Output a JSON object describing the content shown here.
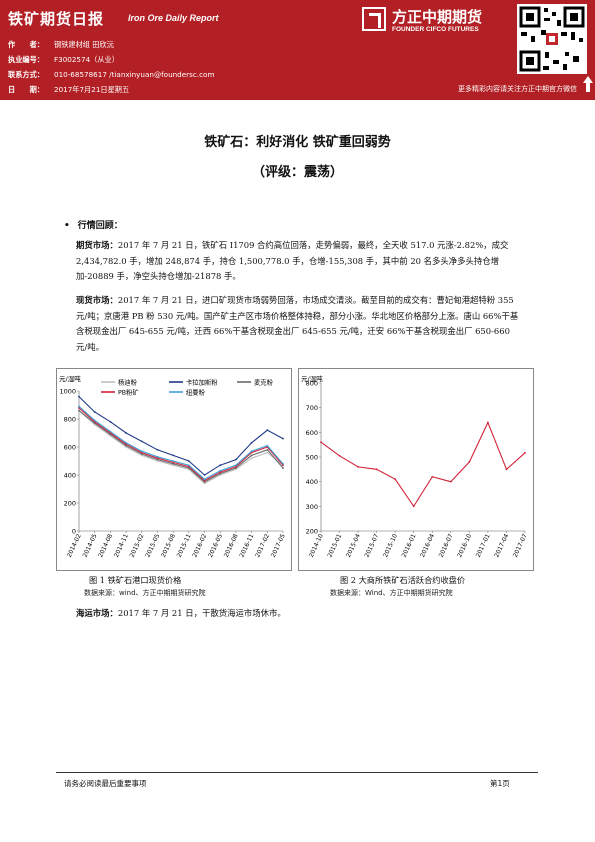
{
  "header": {
    "title": "铁矿期货日报",
    "subtitle": "Iron Ore Daily Report",
    "logo_cn": "方正中期期货",
    "logo_en": "FOUNDER CIFCO FUTURES",
    "meta": [
      {
        "label": "作　　者：",
        "value": "钢铁建材组 田欣沅"
      },
      {
        "label": "执业编号：",
        "value": "F3002574（从业）"
      },
      {
        "label": "联系方式：",
        "value": "010-68578617 /tianxinyuan@foundersc.com"
      },
      {
        "label": "日　　期：",
        "value": "2017年7月21日星期五"
      }
    ],
    "wechat_link": "更多精彩内容请关注方正中期官方微信"
  },
  "title": "铁矿石：利好消化 铁矿重回弱势",
  "rating": "（评级：震荡）",
  "section": "行情回顾：",
  "paragraphs": [
    {
      "lead": "期货市场：",
      "text": "2017 年 7 月 21 日，铁矿石 I1709 合约高位回落，走势偏弱，最终，全天收 517.0 元涨-2.82%，成交 2,434,782.0 手，增加 248,874 手，持仓 1,500,778.0 手，仓增-155,308 手，其中前 20 名多头净多头持仓增加-20889 手，净空头持仓增加-21878 手。"
    },
    {
      "lead": "现货市场：",
      "text": "2017 年 7 月 21 日，进口矿现货市场弱势回落，市场成交清淡。截至目前的成交有：曹妃甸港超特粉 355 元/吨；京唐港 PB 粉 530 元/吨。国产矿主产区市场价格整体持稳，部分小涨。华北地区价格部分上涨。唐山 66%干基含税现金出厂 645-655 元/吨，迁西 66%干基含税现金出厂 645-655 元/吨，迁安 66%干基含税现金出厂 650-660 元/吨。"
    },
    {
      "lead": "海运市场：",
      "text": "2017 年 7 月 21 日，干散货海运市场休市。"
    }
  ],
  "figure1": {
    "caption": "图 1 铁矿石港口现货价格",
    "source": "数据来源：wind、方正中期期货研究院"
  },
  "figure2": {
    "caption": "图 2 大商所铁矿石活跃合约收盘价",
    "source": "数据来源：Wind、方正中期期货研究院"
  },
  "chart_data": [
    {
      "type": "line",
      "ylabel": "元/湿吨",
      "ylim": [
        0,
        1000
      ],
      "yticks": [
        0,
        200,
        400,
        600,
        800,
        1000
      ],
      "x": [
        "2014-02",
        "2014-05",
        "2014-08",
        "2014-11",
        "2015-02",
        "2015-05",
        "2015-08",
        "2015-11",
        "2016-02",
        "2016-05",
        "2016-08",
        "2016-11",
        "2017-02",
        "2017-05"
      ],
      "legend_placement": "top",
      "series": [
        {
          "name": "杨迪粉",
          "color": "#c0c0c0",
          "values": [
            860,
            760,
            680,
            600,
            540,
            500,
            470,
            440,
            340,
            400,
            440,
            520,
            560,
            470
          ]
        },
        {
          "name": "卡拉加斯粉",
          "color": "#1f3a8a",
          "values": [
            960,
            850,
            780,
            700,
            640,
            580,
            540,
            500,
            400,
            470,
            510,
            630,
            720,
            660
          ]
        },
        {
          "name": "麦克粉",
          "color": "#6a6a6a",
          "values": [
            860,
            770,
            690,
            610,
            550,
            510,
            480,
            450,
            350,
            410,
            450,
            540,
            580,
            450
          ]
        },
        {
          "name": "PB粉矿",
          "color": "#d0243a",
          "values": [
            880,
            780,
            700,
            620,
            560,
            520,
            490,
            460,
            360,
            420,
            460,
            560,
            600,
            470
          ]
        },
        {
          "name": "纽曼粉",
          "color": "#3fa0d8",
          "values": [
            890,
            790,
            710,
            630,
            570,
            530,
            500,
            470,
            370,
            430,
            470,
            570,
            610,
            480
          ]
        }
      ]
    },
    {
      "type": "line",
      "ylabel": "元/湿吨",
      "ylim": [
        200,
        800
      ],
      "yticks": [
        200,
        300,
        400,
        500,
        600,
        700,
        800
      ],
      "x": [
        "2014-10",
        "2015-01",
        "2015-04",
        "2015-07",
        "2015-10",
        "2016-01",
        "2016-04",
        "2016-07",
        "2016-10",
        "2017-01",
        "2017-04",
        "2017-07"
      ],
      "series": [
        {
          "name": "",
          "color": "#d0243a",
          "values": [
            560,
            505,
            460,
            450,
            410,
            300,
            420,
            400,
            480,
            640,
            450,
            517
          ]
        }
      ]
    }
  ],
  "footer": {
    "left": "请务必阅读最后重要事项",
    "right": "第1页"
  }
}
